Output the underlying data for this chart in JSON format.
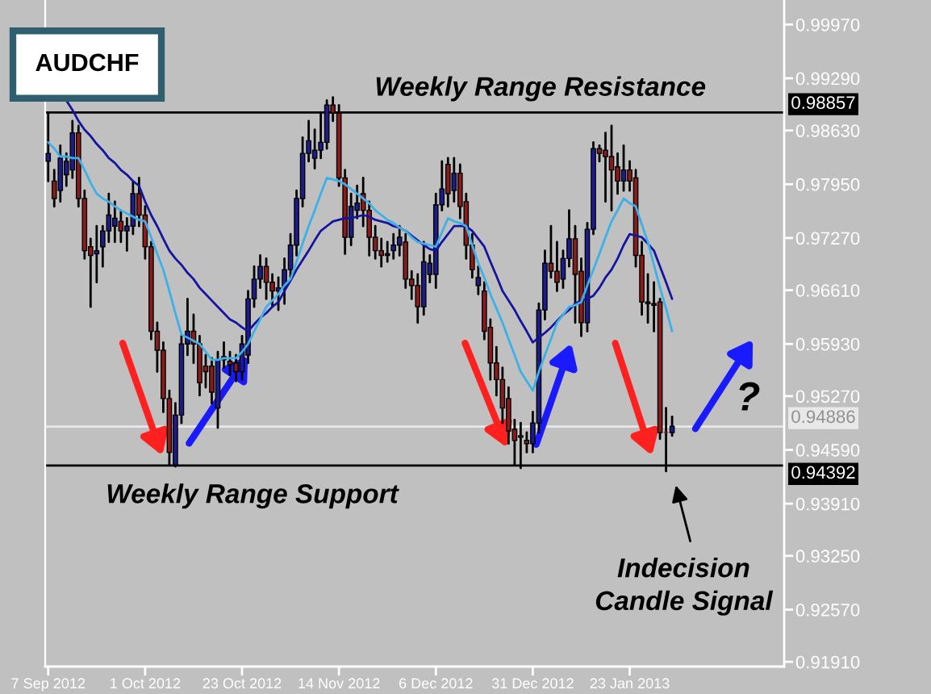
{
  "chart_data": {
    "type": "candlestick",
    "title": "AUDCHF",
    "categories": [
      "7 Sep 2012",
      null,
      null,
      null,
      null,
      null,
      null,
      null,
      null,
      null,
      null,
      null,
      null,
      null,
      null,
      null,
      "1 Oct 2012",
      null,
      null,
      null,
      null,
      null,
      null,
      null,
      null,
      null,
      null,
      null,
      null,
      null,
      null,
      null,
      "23 Oct 2012",
      null,
      null,
      null,
      null,
      null,
      null,
      null,
      null,
      null,
      null,
      null,
      null,
      null,
      null,
      null,
      "14 Nov 2012",
      null,
      null,
      null,
      null,
      null,
      null,
      null,
      null,
      null,
      null,
      null,
      null,
      null,
      null,
      null,
      "6 Dec 2012",
      null,
      null,
      null,
      null,
      null,
      null,
      null,
      null,
      null,
      null,
      null,
      null,
      null,
      null,
      null,
      "31 Dec 2012",
      null,
      null,
      null,
      null,
      null,
      null,
      null,
      null,
      null,
      null,
      null,
      null,
      null,
      null,
      null,
      "23 Jan 2013",
      null,
      null,
      null,
      null,
      null,
      null,
      null,
      null,
      null,
      null,
      null,
      null,
      null,
      null,
      null,
      null,
      null,
      null,
      null,
      null,
      null,
      null,
      null,
      null,
      null
    ],
    "ohlc": [
      [
        0.9824,
        0.9885,
        0.9799,
        0.9834
      ],
      [
        0.9799,
        0.9813,
        0.9767,
        0.9777
      ],
      [
        0.9787,
        0.9844,
        0.9773,
        0.9828
      ],
      [
        0.9807,
        0.9834,
        0.9793,
        0.9824
      ],
      [
        0.9813,
        0.9875,
        0.9803,
        0.986
      ],
      [
        0.986,
        0.9869,
        0.9767,
        0.9777
      ],
      [
        0.9777,
        0.9787,
        0.9701,
        0.9711
      ],
      [
        0.9716,
        0.9726,
        0.964,
        0.9705
      ],
      [
        0.9707,
        0.9742,
        0.9671,
        0.9711
      ],
      [
        0.9716,
        0.9742,
        0.9691,
        0.9736
      ],
      [
        0.9736,
        0.9783,
        0.9722,
        0.9756
      ],
      [
        0.9742,
        0.9773,
        0.9722,
        0.9752
      ],
      [
        0.9748,
        0.9762,
        0.9722,
        0.9736
      ],
      [
        0.9736,
        0.9752,
        0.9711,
        0.9742
      ],
      [
        0.9742,
        0.9799,
        0.9732,
        0.9783
      ],
      [
        0.9783,
        0.9803,
        0.9742,
        0.9756
      ],
      [
        0.9756,
        0.9767,
        0.9701,
        0.9716
      ],
      [
        0.9716,
        0.9722,
        0.9599,
        0.9609
      ],
      [
        0.9609,
        0.962,
        0.9558,
        0.9585
      ],
      [
        0.9585,
        0.9595,
        0.9507,
        0.9524
      ],
      [
        0.9524,
        0.9534,
        0.944,
        0.9456
      ],
      [
        0.944,
        0.9518,
        0.9438,
        0.9503
      ],
      [
        0.9503,
        0.9603,
        0.9493,
        0.9593
      ],
      [
        0.9593,
        0.965,
        0.9579,
        0.9609
      ],
      [
        0.9609,
        0.963,
        0.9569,
        0.9593
      ],
      [
        0.9593,
        0.9603,
        0.9528,
        0.9544
      ],
      [
        0.9565,
        0.9579,
        0.9538,
        0.9558
      ],
      [
        0.9565,
        0.9575,
        0.9518,
        0.9532
      ],
      [
        0.9512,
        0.9583,
        0.9487,
        0.9573
      ],
      [
        0.9573,
        0.9595,
        0.9563,
        0.9577
      ],
      [
        0.9571,
        0.9583,
        0.9554,
        0.9567
      ],
      [
        0.9569,
        0.9579,
        0.9546,
        0.9558
      ],
      [
        0.9558,
        0.9603,
        0.9548,
        0.9593
      ],
      [
        0.9579,
        0.966,
        0.9569,
        0.965
      ],
      [
        0.965,
        0.9691,
        0.964,
        0.9675
      ],
      [
        0.9675,
        0.9705,
        0.9664,
        0.9691
      ],
      [
        0.9691,
        0.9701,
        0.965,
        0.9671
      ],
      [
        0.9671,
        0.9681,
        0.964,
        0.966
      ],
      [
        0.966,
        0.9677,
        0.9636,
        0.9664
      ],
      [
        0.9664,
        0.9701,
        0.9644,
        0.9687
      ],
      [
        0.9687,
        0.9732,
        0.9677,
        0.9718
      ],
      [
        0.9718,
        0.9787,
        0.9705,
        0.9777
      ],
      [
        0.9777,
        0.9854,
        0.9767,
        0.9834
      ],
      [
        0.9834,
        0.9875,
        0.9824,
        0.985
      ],
      [
        0.9828,
        0.9864,
        0.9815,
        0.9838
      ],
      [
        0.9838,
        0.9885,
        0.9828,
        0.9848
      ],
      [
        0.9848,
        0.9901,
        0.984,
        0.9895
      ],
      [
        0.9895,
        0.9905,
        0.9875,
        0.9885
      ],
      [
        0.9885,
        0.9895,
        0.9793,
        0.9803
      ],
      [
        0.9803,
        0.9813,
        0.9707,
        0.9728
      ],
      [
        0.9728,
        0.9783,
        0.9718,
        0.9767
      ],
      [
        0.9762,
        0.9793,
        0.9752,
        0.9771
      ],
      [
        0.9783,
        0.9803,
        0.9742,
        0.9762
      ],
      [
        0.9762,
        0.9773,
        0.9705,
        0.9728
      ],
      [
        0.9728,
        0.9742,
        0.9701,
        0.9711
      ],
      [
        0.9711,
        0.9726,
        0.9691,
        0.9705
      ],
      [
        0.9705,
        0.9722,
        0.9697,
        0.9707
      ],
      [
        0.9711,
        0.9732,
        0.9701,
        0.9718
      ],
      [
        0.9718,
        0.9742,
        0.9705,
        0.9728
      ],
      [
        0.9722,
        0.9732,
        0.9664,
        0.9675
      ],
      [
        0.9675,
        0.9685,
        0.965,
        0.9667
      ],
      [
        0.9667,
        0.9681,
        0.962,
        0.964
      ],
      [
        0.964,
        0.9722,
        0.963,
        0.9697
      ],
      [
        0.9681,
        0.9705,
        0.9671,
        0.9695
      ],
      [
        0.9681,
        0.9783,
        0.9664,
        0.9769
      ],
      [
        0.9769,
        0.9824,
        0.9762,
        0.9789
      ],
      [
        0.982,
        0.9828,
        0.9767,
        0.9783
      ],
      [
        0.9787,
        0.9828,
        0.9773,
        0.9809
      ],
      [
        0.9809,
        0.982,
        0.9752,
        0.9767
      ],
      [
        0.9773,
        0.9783,
        0.9701,
        0.9718
      ],
      [
        0.9718,
        0.9732,
        0.9677,
        0.9687
      ],
      [
        0.9667,
        0.9691,
        0.9656,
        0.9677
      ],
      [
        0.966,
        0.9671,
        0.9599,
        0.9609
      ],
      [
        0.9614,
        0.9624,
        0.9548,
        0.9569
      ],
      [
        0.9569,
        0.9589,
        0.9528,
        0.9548
      ],
      [
        0.9548,
        0.9563,
        0.9493,
        0.9512
      ],
      [
        0.9524,
        0.9538,
        0.9467,
        0.9483
      ],
      [
        0.9485,
        0.9497,
        0.944,
        0.9471
      ],
      [
        0.9477,
        0.9493,
        0.9436,
        0.9475
      ],
      [
        0.9471,
        0.9481,
        0.9456,
        0.9467
      ],
      [
        0.9467,
        0.9507,
        0.9456,
        0.9493
      ],
      [
        0.9493,
        0.9644,
        0.9481,
        0.9636
      ],
      [
        0.9636,
        0.9711,
        0.9624,
        0.9695
      ],
      [
        0.9695,
        0.9742,
        0.9677,
        0.9685
      ],
      [
        0.9685,
        0.9722,
        0.966,
        0.9671
      ],
      [
        0.9675,
        0.9711,
        0.9664,
        0.9701
      ],
      [
        0.9701,
        0.9762,
        0.9691,
        0.9726
      ],
      [
        0.9726,
        0.9742,
        0.962,
        0.9681
      ],
      [
        0.9685,
        0.9701,
        0.9603,
        0.962
      ],
      [
        0.962,
        0.9746,
        0.9609,
        0.9738
      ],
      [
        0.9738,
        0.9848,
        0.9732,
        0.984
      ],
      [
        0.984,
        0.9844,
        0.9824,
        0.9834
      ],
      [
        0.9838,
        0.986,
        0.9773,
        0.983
      ],
      [
        0.983,
        0.9869,
        0.9762,
        0.9813
      ],
      [
        0.9817,
        0.9834,
        0.9783,
        0.9799
      ],
      [
        0.9799,
        0.9844,
        0.9787,
        0.9813
      ],
      [
        0.9813,
        0.9824,
        0.9787,
        0.9799
      ],
      [
        0.9803,
        0.9813,
        0.9691,
        0.9705
      ],
      [
        0.9705,
        0.9722,
        0.963,
        0.9646
      ],
      [
        0.9646,
        0.9681,
        0.962,
        0.9644
      ],
      [
        0.9644,
        0.9671,
        0.9609,
        0.9642
      ],
      [
        0.9646,
        0.965,
        0.9473,
        0.9481
      ],
      [
        0.9481,
        0.9512,
        0.9432,
        0.9481
      ],
      [
        0.9481,
        0.9501,
        0.9477,
        0.9489
      ],
      null,
      null,
      null,
      null,
      null,
      null,
      null,
      null,
      null,
      null,
      null,
      null,
      null,
      null,
      null,
      null,
      null,
      null
    ],
    "colors": [
      "#1c1c8c",
      "#8c1c1c",
      "#1c1c8c",
      "#1c1c8c",
      "#1c1c8c",
      "#8c1c1c",
      "#8c1c1c",
      "#8c1c1c",
      "#1c1c8c",
      "#1c1c8c",
      "#1c1c8c",
      "#1c1c8c",
      "#8c1c1c",
      "#1c1c8c",
      "#1c1c8c",
      "#8c1c1c",
      "#8c1c1c",
      "#8c1c1c",
      "#8c1c1c",
      "#8c1c1c",
      "#8c1c1c",
      "#1c1c8c",
      "#1c1c8c",
      "#1c1c8c",
      "#8c1c1c",
      "#8c1c1c",
      "#8c1c1c",
      "#8c1c1c",
      "#1c1c8c",
      "#1c1c8c",
      "#8c1c1c",
      "#8c1c1c",
      "#1c1c8c",
      "#1c1c8c",
      "#1c1c8c",
      "#1c1c8c",
      "#8c1c1c",
      "#8c1c1c",
      "#1c1c8c",
      "#1c1c8c",
      "#1c1c8c",
      "#1c1c8c",
      "#1c1c8c",
      "#1c1c8c",
      "#1c1c8c",
      "#1c1c8c",
      "#1c1c8c",
      "#8c1c1c",
      "#8c1c1c",
      "#8c1c1c",
      "#1c1c8c",
      "#1c1c8c",
      "#8c1c1c",
      "#8c1c1c",
      "#8c1c1c",
      "#8c1c1c",
      "#1c1c8c",
      "#1c1c8c",
      "#1c1c8c",
      "#8c1c1c",
      "#8c1c1c",
      "#8c1c1c",
      "#1c1c8c",
      "#1c1c8c",
      "#1c1c8c",
      "#1c1c8c",
      "#8c1c1c",
      "#1c1c8c",
      "#8c1c1c",
      "#8c1c1c",
      "#8c1c1c",
      "#1c1c8c",
      "#8c1c1c",
      "#8c1c1c",
      "#8c1c1c",
      "#8c1c1c",
      "#8c1c1c",
      "#8c1c1c",
      "#8c1c1c",
      "#8c1c1c",
      "#1c1c8c",
      "#1c1c8c",
      "#1c1c8c",
      "#8c1c1c",
      "#8c1c1c",
      "#1c1c8c",
      "#1c1c8c",
      "#8c1c1c",
      "#8c1c1c",
      "#1c1c8c",
      "#1c1c8c",
      "#8c1c1c",
      "#8c1c1c",
      "#8c1c1c",
      "#8c1c1c",
      "#1c1c8c",
      "#8c1c1c",
      "#8c1c1c",
      "#8c1c1c",
      "#8c1c1c",
      "#8c1c1c",
      "#8c1c1c",
      "#8c1c1c",
      "#1c1c8c",
      null,
      null,
      null,
      null,
      null,
      null,
      null,
      null,
      null,
      null,
      null,
      null,
      null,
      null,
      null,
      null,
      null,
      null
    ],
    "series": [
      {
        "type": "line",
        "color": "#1414a0",
        "values": [
          null,
          null,
          null,
          0.9901,
          0.9889,
          0.9875,
          0.9864,
          0.9856,
          0.9846,
          0.9838,
          0.9828,
          0.9822,
          0.9813,
          0.9807,
          0.9799,
          0.9793,
          0.9773,
          0.9756,
          0.9742,
          0.9726,
          0.9711,
          0.9701,
          0.9693,
          0.9683,
          0.9675,
          0.9664,
          0.9656,
          0.9648,
          0.964,
          0.9632,
          0.9624,
          0.962,
          0.9614,
          0.9609,
          0.9618,
          0.9626,
          0.9632,
          0.964,
          0.9646,
          0.966,
          0.9673,
          0.9687,
          0.9699,
          0.9711,
          0.9724,
          0.9736,
          0.9742,
          0.9748,
          0.975,
          0.9752,
          0.9752,
          0.9754,
          0.9756,
          0.9754,
          0.975,
          0.9748,
          0.9746,
          0.9742,
          0.974,
          0.9736,
          0.973,
          0.9724,
          0.9718,
          0.9713,
          0.9711,
          0.9722,
          0.9732,
          0.9742,
          0.9742,
          0.9742,
          0.9736,
          0.9726,
          0.9716,
          0.9697,
          0.9679,
          0.966,
          0.9648,
          0.9636,
          0.9622,
          0.9609,
          0.9595,
          0.9601,
          0.9607,
          0.9614,
          0.9622,
          0.963,
          0.9636,
          0.9644,
          0.9648,
          0.965,
          0.9654,
          0.9664,
          0.9677,
          0.9687,
          0.9701,
          0.9718,
          0.9732,
          0.973,
          0.9728,
          0.972,
          0.9711,
          0.9691,
          0.9671,
          0.965,
          null,
          null,
          null,
          null,
          null,
          null,
          null,
          null,
          null,
          null,
          null,
          null,
          null,
          null,
          null,
          null,
          null,
          null
        ]
      },
      {
        "type": "line",
        "color": "#3cb0e8",
        "values": [
          0.9848,
          0.984,
          0.983,
          0.983,
          0.9828,
          0.9828,
          0.9813,
          0.9797,
          0.9783,
          0.9777,
          0.9773,
          0.9767,
          0.9762,
          0.9758,
          0.9754,
          0.975,
          0.9748,
          0.9728,
          0.9707,
          0.9687,
          0.966,
          0.9632,
          0.9605,
          0.9601,
          0.9597,
          0.9593,
          0.9583,
          0.9573,
          0.9573,
          0.9575,
          0.9575,
          0.9575,
          0.9583,
          0.9593,
          0.9609,
          0.9624,
          0.964,
          0.9648,
          0.9656,
          0.9667,
          0.9675,
          0.9697,
          0.972,
          0.9742,
          0.9762,
          0.9783,
          0.9803,
          0.9801,
          0.9799,
          0.9795,
          0.9789,
          0.9783,
          0.9777,
          0.9771,
          0.9762,
          0.9756,
          0.975,
          0.9746,
          0.974,
          0.9736,
          0.9728,
          0.9722,
          0.972,
          0.9718,
          0.9716,
          0.9734,
          0.9752,
          0.9748,
          0.9746,
          0.9742,
          0.9718,
          0.9695,
          0.9677,
          0.9656,
          0.9638,
          0.962,
          0.9599,
          0.9579,
          0.9558,
          0.9546,
          0.9534,
          0.9558,
          0.9579,
          0.9599,
          0.962,
          0.963,
          0.964,
          0.9642,
          0.9646,
          0.9667,
          0.9687,
          0.9707,
          0.9728,
          0.9748,
          0.9762,
          0.9777,
          0.9771,
          0.9767,
          0.9744,
          0.9722,
          0.9693,
          0.9664,
          0.9638,
          0.9609,
          null,
          null,
          null,
          null,
          null,
          null,
          null,
          null,
          null,
          null,
          null,
          null,
          null,
          null,
          null,
          null,
          null,
          null
        ]
      }
    ],
    "ylim": [
      0.9185,
      1.0028
    ],
    "yticks": [
      {
        "value": 0.9997,
        "label": "0.99970"
      },
      {
        "value": 0.9929,
        "label": "0.99290"
      },
      {
        "value": 0.9863,
        "label": "0.98630"
      },
      {
        "value": 0.9795,
        "label": "0.97950"
      },
      {
        "value": 0.9727,
        "label": "0.97270"
      },
      {
        "value": 0.9661,
        "label": "0.96610"
      },
      {
        "value": 0.9593,
        "label": "0.95930"
      },
      {
        "value": 0.9527,
        "label": "0.95270"
      },
      {
        "value": 0.9459,
        "label": "0.94590"
      },
      {
        "value": 0.9391,
        "label": "0.93910"
      },
      {
        "value": 0.9325,
        "label": "0.93250"
      },
      {
        "value": 0.9257,
        "label": "0.92570"
      },
      {
        "value": 0.9191,
        "label": "0.91910"
      }
    ],
    "ref_lines": [
      {
        "axis": "y",
        "value": 0.98857,
        "label": "0.98857",
        "color": "#000000"
      },
      {
        "axis": "y",
        "value": 0.94392,
        "label": "0.94392",
        "color": "#000000"
      },
      {
        "axis": "y",
        "value": 0.94886,
        "label": "0.94886",
        "color": "#e8e8e8"
      }
    ],
    "annotations": [
      {
        "text": "Weekly Range Resistance",
        "y": 0.98857
      },
      {
        "text": "Weekly Range Support",
        "y": 0.94392
      },
      "?",
      "Indecision\nCandle Signal"
    ],
    "grid": false
  }
}
